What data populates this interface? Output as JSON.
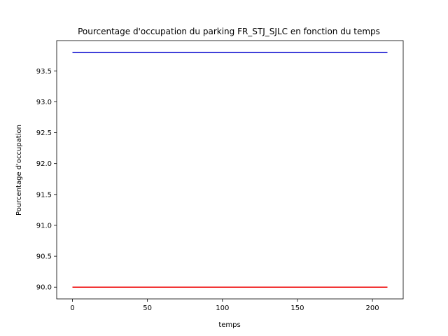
{
  "chart_data": {
    "type": "line",
    "title": "Pourcentage d'occupation du parking FR_STJ_SJLC en fonction du temps",
    "xlabel": "temps",
    "ylabel": "Pourcentage d'occupation",
    "xlim": [
      -10.5,
      220.5
    ],
    "ylim": [
      89.81,
      93.99
    ],
    "xticks": [
      0,
      50,
      100,
      150,
      200
    ],
    "yticks": [
      90.0,
      90.5,
      91.0,
      91.5,
      92.0,
      92.5,
      93.0,
      93.5
    ],
    "xtick_labels": [
      "0",
      "50",
      "100",
      "150",
      "200"
    ],
    "ytick_labels": [
      "90.0",
      "90.5",
      "91.0",
      "91.5",
      "92.0",
      "92.5",
      "93.0",
      "93.5"
    ],
    "grid": false,
    "series": [
      {
        "color": "#0000cc",
        "x": [
          0,
          210
        ],
        "y": [
          93.8,
          93.8
        ]
      },
      {
        "color": "#ee0000",
        "x": [
          0,
          210
        ],
        "y": [
          90.0,
          90.0
        ]
      }
    ]
  }
}
